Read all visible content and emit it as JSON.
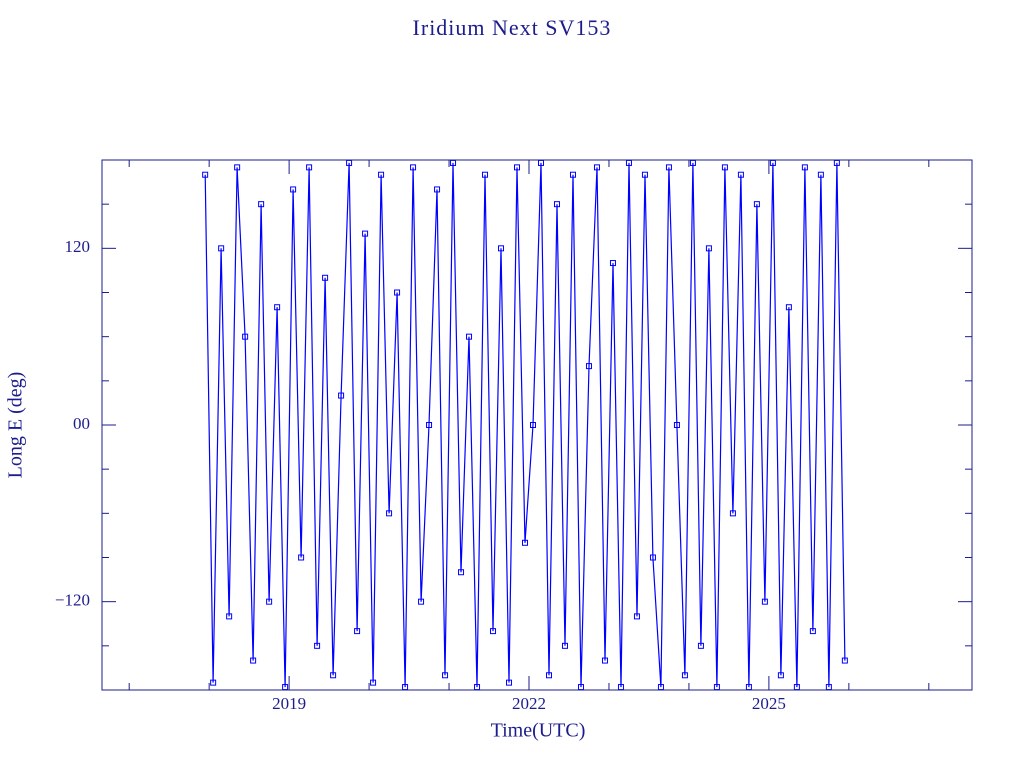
{
  "chart_data": {
    "type": "line",
    "title": "Iridium Next SV153",
    "xlabel": "Time(UTC)",
    "ylabel": "Long E (deg)",
    "color": "#0000ff",
    "x": [
      2017.95,
      2018.05,
      2018.15,
      2018.25,
      2018.35,
      2018.45,
      2018.55,
      2018.65,
      2018.75,
      2018.85,
      2018.95,
      2019.05,
      2019.15,
      2019.25,
      2019.35,
      2019.45,
      2019.55,
      2019.65,
      2019.75,
      2019.85,
      2019.95,
      2020.05,
      2020.15,
      2020.25,
      2020.35,
      2020.45,
      2020.55,
      2020.65,
      2020.75,
      2020.85,
      2020.95,
      2021.05,
      2021.15,
      2021.25,
      2021.35,
      2021.45,
      2021.55,
      2021.65,
      2021.75,
      2021.85,
      2021.95,
      2022.05,
      2022.15,
      2022.25,
      2022.35,
      2022.45,
      2022.55,
      2022.65,
      2022.75,
      2022.85,
      2022.95,
      2023.05,
      2023.15,
      2023.25,
      2023.35,
      2023.45,
      2023.55,
      2023.65,
      2023.75,
      2023.85,
      2023.95,
      2024.05,
      2024.15,
      2024.25,
      2024.35,
      2024.45,
      2024.55,
      2024.65,
      2024.75,
      2024.85,
      2024.95,
      2025.05,
      2025.15,
      2025.25,
      2025.35,
      2025.45,
      2025.55,
      2025.65,
      2025.75,
      2025.85,
      2025.95
    ],
    "values": [
      170,
      -175,
      120,
      -130,
      175,
      60,
      -160,
      150,
      -120,
      80,
      -178,
      160,
      -90,
      175,
      -150,
      100,
      -170,
      20,
      178,
      -140,
      130,
      -175,
      170,
      -60,
      90,
      -178,
      175,
      -120,
      0,
      160,
      -170,
      178,
      -100,
      60,
      -178,
      170,
      -140,
      120,
      -175,
      175,
      -80,
      0,
      178,
      -170,
      150,
      -150,
      170,
      -178,
      40,
      175,
      -160,
      110,
      -178,
      178,
      -130,
      170,
      -90,
      -178,
      175,
      0,
      -170,
      178,
      -150,
      120,
      -178,
      175,
      -60,
      170,
      -178,
      150,
      -120,
      178,
      -170,
      80,
      -178,
      175,
      -140,
      170,
      -178,
      178,
      -160
    ],
    "xlim": [
      2016.66,
      2027.54
    ],
    "ylim": [
      -180,
      180
    ],
    "xticks": [
      2019,
      2022,
      2025
    ],
    "yticks": [
      {
        "value": -120,
        "label": "−120"
      },
      {
        "value": 0,
        "label": "00"
      },
      120
    ],
    "xminorticks": [
      2017,
      2018,
      2020,
      2021,
      2023,
      2024,
      2026,
      2027
    ],
    "yminorticks": [
      -150,
      -90,
      -60,
      -30,
      30,
      60,
      90,
      150
    ]
  }
}
